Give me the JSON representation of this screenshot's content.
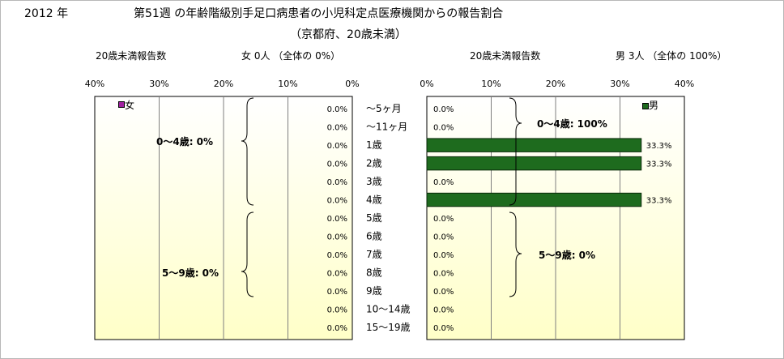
{
  "header": {
    "year": "2012 年",
    "title_line1": "第51週 の年齢階級別手足口病患者の小児科定点医療機関からの報告割合",
    "title_line2": "（京都府、20歳未満）"
  },
  "left_panel": {
    "subtitle": "20歳未満報告数",
    "summary": "女  0人 （全体の  0%）",
    "legend": "女",
    "group_labels": [
      "0～4歳:  0%",
      "5～9歳:  0%"
    ]
  },
  "right_panel": {
    "subtitle": "20歳未満報告数",
    "summary": "男  3人 （全体の  100%）",
    "legend": "男",
    "group_labels": [
      "0～4歳: 100%",
      "5～9歳:  0%"
    ]
  },
  "colors": {
    "male_bar": "#1e6b1e",
    "male_bar_stroke": "#0a2a0a",
    "female_marker": "#a020a0",
    "plot_gradient_top": "#ffffff",
    "plot_gradient_bottom": "#ffffc8"
  },
  "chart_data": [
    {
      "type": "bar",
      "orientation": "horizontal",
      "direction": "right-to-left",
      "series": [
        {
          "name": "女",
          "values": [
            0,
            0,
            0,
            0,
            0,
            0,
            0,
            0,
            0,
            0,
            0,
            0,
            0
          ]
        }
      ],
      "categories": [
        "～5ヶ月",
        "～11ヶ月",
        "1歳",
        "2歳",
        "3歳",
        "4歳",
        "5歳",
        "6歳",
        "7歳",
        "8歳",
        "9歳",
        "10～14歳",
        "15～19歳"
      ],
      "value_labels": [
        "0.0%",
        "0.0%",
        "0.0%",
        "0.0%",
        "0.0%",
        "0.0%",
        "0.0%",
        "0.0%",
        "0.0%",
        "0.0%",
        "0.0%",
        "0.0%",
        "0.0%"
      ],
      "xlim": [
        0,
        40
      ],
      "xticks": [
        "40%",
        "30%",
        "20%",
        "10%",
        "0%"
      ],
      "grid": true,
      "legend_position": "top-left"
    },
    {
      "type": "bar",
      "orientation": "horizontal",
      "direction": "left-to-right",
      "series": [
        {
          "name": "男",
          "values": [
            0,
            0,
            33.3,
            33.3,
            0,
            33.3,
            0,
            0,
            0,
            0,
            0,
            0,
            0
          ]
        }
      ],
      "categories": [
        "～5ヶ月",
        "～11ヶ月",
        "1歳",
        "2歳",
        "3歳",
        "4歳",
        "5歳",
        "6歳",
        "7歳",
        "8歳",
        "9歳",
        "10～14歳",
        "15～19歳"
      ],
      "value_labels": [
        "0.0%",
        "0.0%",
        "33.3%",
        "33.3%",
        "0.0%",
        "33.3%",
        "0.0%",
        "0.0%",
        "0.0%",
        "0.0%",
        "0.0%",
        "0.0%",
        "0.0%"
      ],
      "xlim": [
        0,
        40
      ],
      "xticks": [
        "0%",
        "10%",
        "20%",
        "30%",
        "40%"
      ],
      "grid": true,
      "legend_position": "top-right"
    }
  ]
}
